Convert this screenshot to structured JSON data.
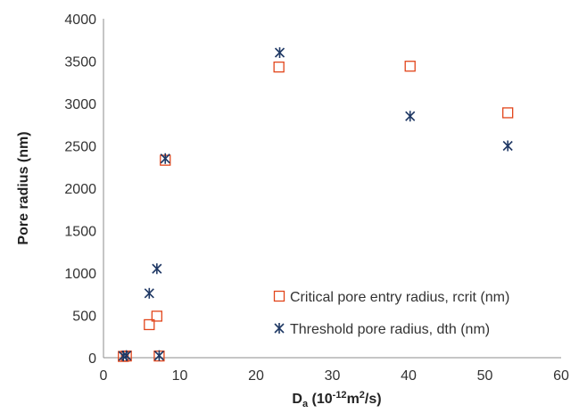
{
  "chart_data": {
    "type": "scatter",
    "title": "",
    "xlabel": {
      "main": "D",
      "sub": "a",
      "units_pre": " (10",
      "sup1": "-12",
      "units_mid": "m",
      "sup2": "2",
      "units_post": "/s)"
    },
    "ylabel": "Pore radius (nm)",
    "xlim": [
      0,
      60
    ],
    "ylim": [
      0,
      4000
    ],
    "x_ticks": [
      0,
      10,
      20,
      30,
      40,
      50,
      60
    ],
    "y_ticks": [
      0,
      500,
      1000,
      1500,
      2000,
      2500,
      3000,
      3500,
      4000
    ],
    "grid": false,
    "legend_position": "bottom-right",
    "series": [
      {
        "name": "Critical pore entry radius, rcrit (nm)",
        "marker": "square-open",
        "color": "#e2451b",
        "points": [
          {
            "x": 2.6,
            "y": 15
          },
          {
            "x": 3.0,
            "y": 20
          },
          {
            "x": 6.0,
            "y": 390
          },
          {
            "x": 7.0,
            "y": 490
          },
          {
            "x": 7.3,
            "y": 20
          },
          {
            "x": 8.1,
            "y": 2330
          },
          {
            "x": 23.0,
            "y": 3430
          },
          {
            "x": 40.2,
            "y": 3440
          },
          {
            "x": 53.0,
            "y": 2890
          }
        ]
      },
      {
        "name": "Threshold pore radius, dth (nm)",
        "marker": "asterisk",
        "color": "#1f3864",
        "points": [
          {
            "x": 2.6,
            "y": 20
          },
          {
            "x": 3.0,
            "y": 25
          },
          {
            "x": 6.0,
            "y": 760
          },
          {
            "x": 7.0,
            "y": 1050
          },
          {
            "x": 7.3,
            "y": 25
          },
          {
            "x": 8.1,
            "y": 2350
          },
          {
            "x": 23.1,
            "y": 3600
          },
          {
            "x": 40.2,
            "y": 2850
          },
          {
            "x": 53.0,
            "y": 2500
          }
        ]
      }
    ]
  }
}
